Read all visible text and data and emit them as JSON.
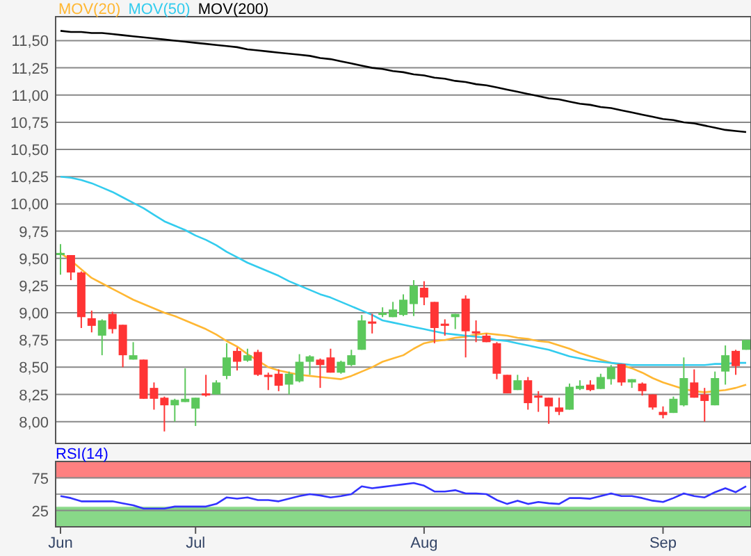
{
  "chart_data": [
    {
      "type": "candlestick",
      "legend": "top left",
      "grid": "y",
      "tick_labels": "y",
      "categories": [
        null,
        null,
        null,
        null,
        null,
        null,
        null,
        null,
        null,
        null,
        null,
        null,
        null,
        null,
        null,
        null,
        null,
        null,
        null,
        null,
        null,
        null,
        null,
        null,
        null,
        null,
        null,
        null,
        null,
        null,
        null,
        null,
        null,
        null,
        null,
        null,
        null,
        null,
        null,
        null,
        null,
        null,
        null,
        null,
        null,
        null,
        null,
        null,
        null,
        null,
        null,
        null,
        null,
        null,
        null,
        null,
        null,
        null,
        null,
        null,
        null,
        null,
        null,
        null,
        null,
        null,
        null
      ],
      "ylim": [
        7.8,
        11.72
      ],
      "yticks": [
        {
          "value": 8,
          "label": "8,00"
        },
        {
          "value": 8.25,
          "label": "8,25"
        },
        {
          "value": 8.5,
          "label": "8,50"
        },
        {
          "value": 8.75,
          "label": "8,75"
        },
        {
          "value": 9,
          "label": "9,00"
        },
        {
          "value": 9.25,
          "label": "9,25"
        },
        {
          "value": 9.5,
          "label": "9,50"
        },
        {
          "value": 9.75,
          "label": "9,75"
        },
        {
          "value": 10,
          "label": "10,00"
        },
        {
          "value": 10.25,
          "label": "10,25"
        },
        {
          "value": 10.5,
          "label": "10,50"
        },
        {
          "value": 10.75,
          "label": "10,75"
        },
        {
          "value": 11,
          "label": "11,00"
        },
        {
          "value": 11.25,
          "label": "11,25"
        },
        {
          "value": 11.5,
          "label": "11,50"
        }
      ],
      "ohlc": [
        [
          9.53,
          9.63,
          9.35,
          9.55
        ],
        [
          9.53,
          9.53,
          9.3,
          9.37
        ],
        [
          9.37,
          9.38,
          8.86,
          8.96
        ],
        [
          8.95,
          9.02,
          8.82,
          8.88
        ],
        [
          8.79,
          8.94,
          8.61,
          8.93
        ],
        [
          8.99,
          9.01,
          8.81,
          8.85
        ],
        [
          8.89,
          8.89,
          8.5,
          8.61
        ],
        [
          8.57,
          8.73,
          8.57,
          8.61
        ],
        [
          8.57,
          8.57,
          8.21,
          8.21
        ],
        [
          8.31,
          8.36,
          8.11,
          8.21
        ],
        [
          8.22,
          8.23,
          7.91,
          8.15
        ],
        [
          8.15,
          8.21,
          8.0,
          8.2
        ],
        [
          8.18,
          8.49,
          8.18,
          8.21
        ],
        [
          8.12,
          8.22,
          7.96,
          8.22
        ],
        [
          8.26,
          8.43,
          8.23,
          8.24
        ],
        [
          8.25,
          8.38,
          8.25,
          8.36
        ],
        [
          8.42,
          8.72,
          8.39,
          8.59
        ],
        [
          8.65,
          8.68,
          8.47,
          8.55
        ],
        [
          8.56,
          8.67,
          8.55,
          8.61
        ],
        [
          8.64,
          8.66,
          8.42,
          8.43
        ],
        [
          8.43,
          8.45,
          8.29,
          8.41
        ],
        [
          8.44,
          8.48,
          8.28,
          8.33
        ],
        [
          8.34,
          8.46,
          8.25,
          8.44
        ],
        [
          8.37,
          8.62,
          8.36,
          8.55
        ],
        [
          8.55,
          8.61,
          8.43,
          8.6
        ],
        [
          8.57,
          8.58,
          8.31,
          8.52
        ],
        [
          8.59,
          8.67,
          8.45,
          8.45
        ],
        [
          8.45,
          8.56,
          8.44,
          8.55
        ],
        [
          8.52,
          8.66,
          8.51,
          8.61
        ],
        [
          8.66,
          8.98,
          8.66,
          8.93
        ],
        [
          8.92,
          8.99,
          8.81,
          8.9
        ],
        [
          8.98,
          9.05,
          8.96,
          9.0
        ],
        [
          8.96,
          9.1,
          8.96,
          9.03
        ],
        [
          8.98,
          9.17,
          8.97,
          9.12
        ],
        [
          9.08,
          9.3,
          8.97,
          9.25
        ],
        [
          9.23,
          9.29,
          9.07,
          9.14
        ],
        [
          9.1,
          9.1,
          8.72,
          8.86
        ],
        [
          8.9,
          8.94,
          8.79,
          8.88
        ],
        [
          8.96,
          8.99,
          8.85,
          8.99
        ],
        [
          9.13,
          9.16,
          8.59,
          8.83
        ],
        [
          8.83,
          8.93,
          8.73,
          8.81
        ],
        [
          8.79,
          8.81,
          8.73,
          8.73
        ],
        [
          8.72,
          8.73,
          8.39,
          8.44
        ],
        [
          8.43,
          8.43,
          8.26,
          8.26
        ],
        [
          8.29,
          8.43,
          8.29,
          8.38
        ],
        [
          8.38,
          8.41,
          8.11,
          8.17
        ],
        [
          8.24,
          8.28,
          8.09,
          8.22
        ],
        [
          8.22,
          8.22,
          7.98,
          8.14
        ],
        [
          8.13,
          8.22,
          8.06,
          8.09
        ],
        [
          8.11,
          8.35,
          8.11,
          8.32
        ],
        [
          8.3,
          8.38,
          8.29,
          8.33
        ],
        [
          8.34,
          8.38,
          8.28,
          8.29
        ],
        [
          8.3,
          8.44,
          8.3,
          8.41
        ],
        [
          8.39,
          8.52,
          8.34,
          8.5
        ],
        [
          8.53,
          8.53,
          8.33,
          8.36
        ],
        [
          8.36,
          8.39,
          8.31,
          8.39
        ],
        [
          8.35,
          8.36,
          8.24,
          8.28
        ],
        [
          8.25,
          8.25,
          8.11,
          8.13
        ],
        [
          8.09,
          8.14,
          8.03,
          8.06
        ],
        [
          8.08,
          8.23,
          8.08,
          8.21
        ],
        [
          8.15,
          8.59,
          8.14,
          8.4
        ],
        [
          8.36,
          8.48,
          8.22,
          8.22
        ],
        [
          8.25,
          8.31,
          8.0,
          8.19
        ],
        [
          8.15,
          8.46,
          8.15,
          8.4
        ],
        [
          8.46,
          8.7,
          8.34,
          8.61
        ],
        [
          8.65,
          8.66,
          8.43,
          8.51
        ],
        [
          8.66,
          8.75,
          8.66,
          8.75
        ]
      ],
      "colors": [
        "#5cc85c",
        "#ff3434",
        "#ff3434",
        "#ff3434",
        "#5cc85c",
        "#ff3434",
        "#ff3434",
        "#5cc85c",
        "#ff3434",
        "#ff3434",
        "#ff3434",
        "#5cc85c",
        "#5cc85c",
        "#5cc85c",
        "#ff3434",
        "#5cc85c",
        "#5cc85c",
        "#ff3434",
        "#5cc85c",
        "#ff3434",
        "#ff3434",
        "#ff3434",
        "#5cc85c",
        "#5cc85c",
        "#5cc85c",
        "#ff3434",
        "#ff3434",
        "#5cc85c",
        "#5cc85c",
        "#5cc85c",
        "#ff3434",
        "#5cc85c",
        "#5cc85c",
        "#5cc85c",
        "#5cc85c",
        "#ff3434",
        "#ff3434",
        "#ff3434",
        "#5cc85c",
        "#ff3434",
        "#ff3434",
        "#ff3434",
        "#ff3434",
        "#ff3434",
        "#5cc85c",
        "#ff3434",
        "#ff3434",
        "#ff3434",
        "#ff3434",
        "#5cc85c",
        "#5cc85c",
        "#ff3434",
        "#5cc85c",
        "#5cc85c",
        "#ff3434",
        "#5cc85c",
        "#ff3434",
        "#ff3434",
        "#ff3434",
        "#5cc85c",
        "#5cc85c",
        "#ff3434",
        "#ff3434",
        "#5cc85c",
        "#5cc85c",
        "#ff3434",
        "#5cc85c"
      ],
      "series": [
        {
          "name": "MOV(20)",
          "type": "line",
          "color": "#ffb733",
          "values": [
            9.55,
            9.48,
            9.4,
            9.32,
            9.27,
            9.22,
            9.17,
            9.12,
            9.08,
            9.04,
            9.0,
            8.97,
            8.93,
            8.89,
            8.85,
            8.8,
            8.74,
            8.69,
            8.62,
            8.56,
            8.5,
            8.47,
            8.45,
            8.43,
            8.42,
            8.41,
            8.4,
            8.39,
            8.42,
            8.46,
            8.5,
            8.55,
            8.58,
            8.61,
            8.67,
            8.72,
            8.74,
            8.75,
            8.77,
            8.78,
            8.8,
            8.81,
            8.8,
            8.79,
            8.77,
            8.76,
            8.74,
            8.73,
            8.7,
            8.67,
            8.63,
            8.6,
            8.57,
            8.54,
            8.52,
            8.49,
            8.45,
            8.4,
            8.36,
            8.33,
            8.3,
            8.28,
            8.27,
            8.28,
            8.29,
            8.31,
            8.34
          ]
        },
        {
          "name": "MOV(50)",
          "type": "line",
          "color": "#33ccee",
          "values": [
            10.25,
            10.24,
            10.22,
            10.19,
            10.15,
            10.11,
            10.06,
            10.01,
            9.96,
            9.9,
            9.84,
            9.8,
            9.76,
            9.71,
            9.67,
            9.62,
            9.56,
            9.51,
            9.46,
            9.42,
            9.38,
            9.34,
            9.29,
            9.25,
            9.21,
            9.17,
            9.14,
            9.1,
            9.06,
            9.02,
            8.98,
            8.93,
            8.91,
            8.89,
            8.87,
            8.85,
            8.83,
            8.81,
            8.8,
            8.79,
            8.78,
            8.77,
            8.75,
            8.74,
            8.72,
            8.7,
            8.68,
            8.66,
            8.63,
            8.6,
            8.58,
            8.56,
            8.55,
            8.54,
            8.53,
            8.52,
            8.52,
            8.52,
            8.52,
            8.52,
            8.52,
            8.52,
            8.52,
            8.53,
            8.53,
            8.54,
            8.54
          ]
        },
        {
          "name": "MOV(200)",
          "type": "line",
          "color": "#000000",
          "values": [
            11.59,
            11.58,
            11.58,
            11.57,
            11.57,
            11.56,
            11.55,
            11.54,
            11.53,
            11.52,
            11.51,
            11.5,
            11.49,
            11.48,
            11.47,
            11.46,
            11.45,
            11.44,
            11.42,
            11.41,
            11.4,
            11.39,
            11.38,
            11.37,
            11.36,
            11.34,
            11.33,
            11.31,
            11.29,
            11.27,
            11.25,
            11.24,
            11.22,
            11.21,
            11.19,
            11.18,
            11.16,
            11.15,
            11.13,
            11.12,
            11.1,
            11.09,
            11.07,
            11.05,
            11.03,
            11.01,
            10.99,
            10.97,
            10.96,
            10.94,
            10.92,
            10.91,
            10.89,
            10.88,
            10.86,
            10.84,
            10.82,
            10.8,
            10.78,
            10.77,
            10.75,
            10.74,
            10.72,
            10.7,
            10.68,
            10.67,
            10.66
          ]
        }
      ]
    },
    {
      "type": "line",
      "title": "RSI(14)",
      "grid": "y",
      "categories": [
        "Jun",
        null,
        null,
        null,
        null,
        null,
        null,
        null,
        null,
        null,
        null,
        null,
        null,
        "Jul",
        null,
        null,
        null,
        null,
        null,
        null,
        null,
        null,
        null,
        null,
        null,
        null,
        null,
        null,
        null,
        null,
        null,
        null,
        null,
        null,
        null,
        "Aug",
        null,
        null,
        null,
        null,
        null,
        null,
        null,
        null,
        null,
        null,
        null,
        null,
        null,
        null,
        null,
        null,
        null,
        null,
        null,
        null,
        null,
        null,
        "Sep",
        null,
        null,
        null,
        null,
        null,
        null,
        null,
        null
      ],
      "ylim": [
        0,
        100
      ],
      "yticks": [
        25,
        75
      ],
      "bands": [
        {
          "axis": "y",
          "from": 75,
          "to": 100,
          "color": "#ff8080"
        },
        {
          "axis": "y",
          "from": 0,
          "to": 30,
          "color": "#88d888"
        }
      ],
      "ref_lines": [
        {
          "axis": "y",
          "value": 50,
          "color": "#999999"
        }
      ],
      "series": [
        {
          "color": "#3333ff",
          "values": [
            47,
            44,
            39,
            39,
            39,
            39,
            36,
            33,
            28,
            28,
            28,
            31,
            31,
            31,
            31,
            35,
            45,
            43,
            45,
            41,
            41,
            39,
            43,
            47,
            50,
            48,
            45,
            47,
            50,
            62,
            59,
            61,
            63,
            65,
            67,
            63,
            54,
            54,
            56,
            51,
            51,
            50,
            41,
            35,
            40,
            35,
            38,
            36,
            35,
            44,
            44,
            43,
            47,
            51,
            47,
            47,
            44,
            40,
            38,
            44,
            51,
            47,
            45,
            53,
            59,
            53,
            62
          ]
        }
      ]
    }
  ]
}
